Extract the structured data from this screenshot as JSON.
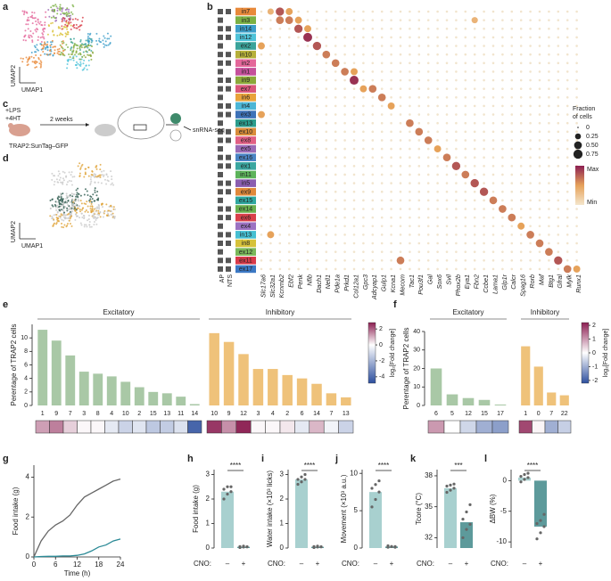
{
  "chart_data": [
    {
      "type": "umap",
      "panel": "a",
      "xlabel": "UMAP1",
      "ylabel": "UMAP2"
    },
    {
      "type": "dotplot",
      "panel": "b",
      "region_labels": [
        "AP",
        "NTS"
      ],
      "clusters": [
        {
          "label": "in7",
          "color": "#e8893a"
        },
        {
          "label": "in3",
          "color": "#7bb043"
        },
        {
          "label": "in14",
          "color": "#3b9ec9"
        },
        {
          "label": "in12",
          "color": "#4fc3d9"
        },
        {
          "label": "ex2",
          "color": "#3aa39a"
        },
        {
          "label": "in10",
          "color": "#b6b03a"
        },
        {
          "label": "in2",
          "color": "#e4679a"
        },
        {
          "label": "in1",
          "color": "#c5509b"
        },
        {
          "label": "in9",
          "color": "#8ba83a"
        },
        {
          "label": "ex7",
          "color": "#d9577a"
        },
        {
          "label": "in6",
          "color": "#e8a23a"
        },
        {
          "label": "in4",
          "color": "#4cb6d6"
        },
        {
          "label": "ex3",
          "color": "#3d72b8"
        },
        {
          "label": "ex13",
          "color": "#2b9c8c"
        },
        {
          "label": "ex10",
          "color": "#d98c3a"
        },
        {
          "label": "ex8",
          "color": "#e15f84"
        },
        {
          "label": "ex5",
          "color": "#9a6ab5"
        },
        {
          "label": "ex16",
          "color": "#4a84c4"
        },
        {
          "label": "ex1",
          "color": "#3aa6a0"
        },
        {
          "label": "in11",
          "color": "#5cb35a"
        },
        {
          "label": "in5",
          "color": "#8a5db0"
        },
        {
          "label": "ex9",
          "color": "#e0883a"
        },
        {
          "label": "ex15",
          "color": "#2fa7a0"
        },
        {
          "label": "ex14",
          "color": "#6ab04e"
        },
        {
          "label": "ex6",
          "color": "#d9404a"
        },
        {
          "label": "ex4",
          "color": "#9b72c2"
        },
        {
          "label": "in13",
          "color": "#46bfd2"
        },
        {
          "label": "in8",
          "color": "#d6c23a"
        },
        {
          "label": "ex12",
          "color": "#7ab85a"
        },
        {
          "label": "ex11",
          "color": "#d83a4a"
        },
        {
          "label": "ex17",
          "color": "#3b78c4"
        }
      ],
      "genes": [
        "Slc17a6",
        "Slc32a1",
        "Kcnmb2",
        "Ebf2",
        "Penk",
        "Nfib",
        "Dach1",
        "Nell1",
        "Pde1a",
        "Prkd1",
        "Col12a1",
        "Gpc3",
        "Adcyap1",
        "Gulp1",
        "Kcna1",
        "Mecom",
        "Tac1",
        "Pou3f1",
        "Gal",
        "Sox6",
        "Svil",
        "Phox2b",
        "Eya1",
        "Fbn2",
        "Ccbe1",
        "Lama1",
        "Glp1r",
        "Calcr",
        "Spag16",
        "Rorb",
        "Maf",
        "Btg1",
        "Gfral",
        "Mylk",
        "Runx1"
      ],
      "dots": [
        {
          "cluster": "in7",
          "gene": "Kcnmb2",
          "fraction": 0.6
        },
        {
          "cluster": "in7",
          "gene": "Ebf2",
          "fraction": 0.4
        },
        {
          "cluster": "in7",
          "gene": "Slc32a1",
          "fraction": 0.3
        },
        {
          "cluster": "in3",
          "gene": "Kcnmb2",
          "fraction": 0.5
        },
        {
          "cluster": "in3",
          "gene": "Ebf2",
          "fraction": 0.5
        },
        {
          "cluster": "in3",
          "gene": "Penk",
          "fraction": 0.4
        },
        {
          "cluster": "in3",
          "gene": "Fbn2",
          "fraction": 0.3
        },
        {
          "cluster": "in14",
          "gene": "Penk",
          "fraction": 0.6
        },
        {
          "cluster": "in14",
          "gene": "Nfib",
          "fraction": 0.4
        },
        {
          "cluster": "in12",
          "gene": "Nfib",
          "fraction": 0.7
        },
        {
          "cluster": "ex2",
          "gene": "Slc17a6",
          "fraction": 0.4
        },
        {
          "cluster": "ex2",
          "gene": "Dach1",
          "fraction": 0.6
        },
        {
          "cluster": "in10",
          "gene": "Nell1",
          "fraction": 0.5
        },
        {
          "cluster": "in2",
          "gene": "Pde1a",
          "fraction": 0.5
        },
        {
          "cluster": "in1",
          "gene": "Prkd1",
          "fraction": 0.5
        },
        {
          "cluster": "in1",
          "gene": "Col12a1",
          "fraction": 0.4
        },
        {
          "cluster": "in9",
          "gene": "Col12a1",
          "fraction": 0.7
        },
        {
          "cluster": "ex7",
          "gene": "Adcyap1",
          "fraction": 0.5
        },
        {
          "cluster": "ex7",
          "gene": "Gpc3",
          "fraction": 0.4
        },
        {
          "cluster": "in6",
          "gene": "Gulp1",
          "fraction": 0.5
        },
        {
          "cluster": "in4",
          "gene": "Kcna1",
          "fraction": 0.4
        },
        {
          "cluster": "ex3",
          "gene": "Slc17a6",
          "fraction": 0.4
        },
        {
          "cluster": "ex13",
          "gene": "Tac1",
          "fraction": 0.5
        },
        {
          "cluster": "ex10",
          "gene": "Pou3f1",
          "fraction": 0.5
        },
        {
          "cluster": "ex8",
          "gene": "Gal",
          "fraction": 0.5
        },
        {
          "cluster": "ex5",
          "gene": "Sox6",
          "fraction": 0.4
        },
        {
          "cluster": "ex16",
          "gene": "Svil",
          "fraction": 0.5
        },
        {
          "cluster": "ex1",
          "gene": "Phox2b",
          "fraction": 0.6
        },
        {
          "cluster": "in11",
          "gene": "Eya1",
          "fraction": 0.5
        },
        {
          "cluster": "in5",
          "gene": "Fbn2",
          "fraction": 0.6
        },
        {
          "cluster": "ex9",
          "gene": "Ccbe1",
          "fraction": 0.6
        },
        {
          "cluster": "ex15",
          "gene": "Lama1",
          "fraction": 0.5
        },
        {
          "cluster": "ex14",
          "gene": "Glp1r",
          "fraction": 0.5
        },
        {
          "cluster": "ex6",
          "gene": "Calcr",
          "fraction": 0.5
        },
        {
          "cluster": "ex4",
          "gene": "Spag16",
          "fraction": 0.4
        },
        {
          "cluster": "in13",
          "gene": "Rorb",
          "fraction": 0.5
        },
        {
          "cluster": "in13",
          "gene": "Slc32a1",
          "fraction": 0.4
        },
        {
          "cluster": "in8",
          "gene": "Maf",
          "fraction": 0.5
        },
        {
          "cluster": "ex12",
          "gene": "Btg1",
          "fraction": 0.5
        },
        {
          "cluster": "ex11",
          "gene": "Gfral",
          "fraction": 0.6
        },
        {
          "cluster": "ex11",
          "gene": "Mecom",
          "fraction": 0.5
        },
        {
          "cluster": "ex17",
          "gene": "Mylk",
          "fraction": 0.5
        },
        {
          "cluster": "ex17",
          "gene": "Runx1",
          "fraction": 0.4
        }
      ],
      "size_legend_title": [
        "Fraction",
        "of cells"
      ],
      "size_ticks": [
        0,
        0.25,
        {
          "value": 0.5,
          "label": "0.50"
        },
        0.75
      ],
      "color_legend": [
        "Max",
        "Min"
      ]
    },
    {
      "type": "schematic",
      "panel": "c",
      "texts": [
        "+LPS",
        "+4HT",
        "2 weeks",
        "TRAP2:SunTag–GFP",
        "snRNA-seq"
      ]
    },
    {
      "type": "umap",
      "panel": "d",
      "xlabel": "UMAP1",
      "ylabel": "UMAP2"
    },
    {
      "type": "grouped_bar",
      "panel": "e",
      "ylabel": "Perentage of TRAP2 cells",
      "ylim": [
        0,
        12
      ],
      "yticks": [
        0,
        2,
        4,
        6,
        8,
        10
      ],
      "colorbar_label": "log₂[Fold change]",
      "clim": [
        -4.8,
        2.8
      ],
      "cticks": [
        2,
        0,
        -2,
        -4
      ],
      "groups": [
        {
          "name": "Excitatory",
          "color": "#a9c8a6",
          "categories": [
            "1",
            "9",
            "7",
            "3",
            "8",
            "4",
            "10",
            "2",
            "15",
            "13",
            "11",
            "14"
          ],
          "values": [
            11.2,
            9.6,
            7.4,
            5.0,
            4.7,
            4.3,
            3.5,
            2.7,
            2.0,
            1.8,
            1.3,
            0.2
          ],
          "fold_change": [
            1.2,
            1.6,
            0.6,
            0.1,
            0.1,
            -0.6,
            -1.2,
            -0.7,
            -1.5,
            -1.4,
            -0.8,
            -4.2
          ]
        },
        {
          "name": "Inhibitory",
          "color": "#efc27a",
          "categories": [
            "10",
            "9",
            "12",
            "3",
            "4",
            "2",
            "6",
            "14",
            "7",
            "13"
          ],
          "values": [
            10.7,
            9.4,
            7.6,
            5.4,
            5.4,
            4.5,
            4.0,
            3.2,
            1.8,
            1.2
          ],
          "fold_change": [
            2.5,
            1.4,
            2.7,
            0.1,
            0.1,
            0.3,
            -0.6,
            0.9,
            -0.3,
            -1.2
          ]
        }
      ]
    },
    {
      "type": "grouped_bar",
      "panel": "f",
      "ylabel": "Perentage of TRAP2 cells",
      "ylim": [
        0,
        40
      ],
      "yticks": [
        0,
        10,
        20,
        30,
        40
      ],
      "colorbar_label": "log₂[Fold change]",
      "clim": [
        -2.2,
        2.2
      ],
      "cticks": [
        2,
        1,
        0,
        -1,
        -2
      ],
      "groups": [
        {
          "name": "Excitatory",
          "color": "#a9c8a6",
          "categories": [
            "6",
            "5",
            "12",
            "15",
            "17"
          ],
          "values": [
            20,
            6,
            4,
            3,
            0.5
          ],
          "fold_change": [
            1.0,
            0.0,
            -0.5,
            -1.0,
            -1.2
          ]
        },
        {
          "name": "Inhibitory",
          "color": "#efc27a",
          "categories": [
            "1",
            "0",
            "7",
            "22"
          ],
          "values": [
            32,
            21,
            7,
            5.5
          ],
          "fold_change": [
            1.8,
            0.1,
            -1.0,
            -0.6
          ]
        }
      ]
    },
    {
      "type": "line",
      "panel": "g",
      "xlabel": "Time (h)",
      "ylabel": "Food intake (g)",
      "x": [
        0,
        2,
        4,
        6,
        8,
        10,
        12,
        14,
        16,
        18,
        20,
        22,
        24
      ],
      "xlim": [
        0,
        24
      ],
      "xticks": [
        0,
        6,
        12,
        18,
        24
      ],
      "ylim": [
        0,
        4.6
      ],
      "yticks": [
        0,
        2,
        4
      ],
      "series": [
        {
          "color": "#666666",
          "values": [
            0,
            0.8,
            1.3,
            1.6,
            1.8,
            2.1,
            2.6,
            3.0,
            3.2,
            3.4,
            3.6,
            3.8,
            3.9
          ]
        },
        {
          "color": "#2b8a96",
          "values": [
            0,
            0.02,
            0.03,
            0.03,
            0.05,
            0.05,
            0.08,
            0.15,
            0.3,
            0.5,
            0.6,
            0.8,
            0.9
          ]
        }
      ]
    },
    {
      "type": "bar",
      "panel": "h",
      "ylabel": "Food intake (g)",
      "group_label": "CNO:",
      "categories": [
        "–",
        "+"
      ],
      "values": [
        2.3,
        0.05
      ],
      "colors": [
        "#a8d0cf",
        "#5d9a9b"
      ],
      "ylim": [
        0,
        3.2
      ],
      "yticks": [
        0,
        1,
        2,
        3
      ],
      "significance": "****",
      "points": [
        [
          2.0,
          2.2,
          2.3,
          2.4,
          2.5,
          2.5
        ],
        [
          0.02,
          0.04,
          0.05,
          0.06,
          0.08,
          0.05
        ]
      ]
    },
    {
      "type": "bar",
      "panel": "i",
      "ylabel": "Water intake (×10³ licks)",
      "group_label": "CNO:",
      "categories": [
        "–",
        "+"
      ],
      "values": [
        2.8,
        0.05
      ],
      "colors": [
        "#a8d0cf",
        "#5d9a9b"
      ],
      "ylim": [
        0,
        3.2
      ],
      "yticks": [
        0,
        1,
        2,
        3
      ],
      "significance": "****",
      "points": [
        [
          2.6,
          2.7,
          2.8,
          2.8,
          2.9,
          3.0
        ],
        [
          0.02,
          0.04,
          0.05,
          0.06,
          0.08,
          0.05
        ]
      ]
    },
    {
      "type": "bar",
      "panel": "j",
      "ylabel": "Movement (×10³ a.u.)",
      "group_label": "CNO:",
      "categories": [
        "–",
        "+"
      ],
      "values": [
        7.5,
        0.2
      ],
      "colors": [
        "#a8d0cf",
        "#5d9a9b"
      ],
      "ylim": [
        0,
        10.5
      ],
      "yticks": [
        0,
        5,
        10
      ],
      "significance": "****",
      "points": [
        [
          5.5,
          6.5,
          7.5,
          8.0,
          8.5,
          9.0
        ],
        [
          0.1,
          0.2,
          0.2,
          0.3,
          0.2,
          0.1
        ]
      ]
    },
    {
      "type": "bar",
      "panel": "k",
      "ylabel": "Tcore (°C)",
      "group_label": "CNO:",
      "categories": [
        "–",
        "+"
      ],
      "values": [
        36.8,
        33.5
      ],
      "colors": [
        "#a8d0cf",
        "#5d9a9b"
      ],
      "ylim": [
        31,
        38.6
      ],
      "yticks": [
        32,
        35,
        38
      ],
      "significance": "***",
      "points": [
        [
          36.4,
          36.6,
          36.8,
          37.0,
          37.1,
          37.2
        ],
        [
          32.0,
          32.8,
          33.3,
          33.8,
          34.5,
          35.2
        ]
      ]
    },
    {
      "type": "bar",
      "panel": "l",
      "ylabel": "ΔBW (%)",
      "group_label": "CNO:",
      "categories": [
        "–",
        "+"
      ],
      "values": [
        0.5,
        -7.5
      ],
      "colors": [
        "#a8d0cf",
        "#5d9a9b"
      ],
      "ylim": [
        -11,
        1.8
      ],
      "yticks": [
        0,
        -5,
        -10
      ],
      "significance": "****",
      "points": [
        [
          -0.2,
          0.2,
          0.5,
          0.7,
          1.0,
          1.2
        ],
        [
          -9.5,
          -8.5,
          -7.5,
          -7.0,
          -6.5,
          -5.5
        ]
      ]
    }
  ]
}
